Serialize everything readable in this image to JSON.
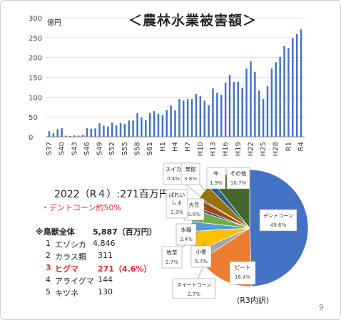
{
  "title": "＜農林水業被害額＞",
  "unit_label": "億円",
  "page_number": "9",
  "summary": {
    "headline": "2022（R４）:271百万円",
    "note": "・デントコーン約50%"
  },
  "ranking": {
    "header_label": "※鳥獣全体",
    "header_value": "5,887（百万円）",
    "items": [
      {
        "rank": "1",
        "name": "エゾシカ",
        "value": "4,846"
      },
      {
        "rank": "2",
        "name": "カラス類",
        "value": "311"
      },
      {
        "rank": "3",
        "name": "ヒグマ",
        "value": "271（4.6%）"
      },
      {
        "rank": "4",
        "name": "アライグマ",
        "value": "144"
      },
      {
        "rank": "5",
        "name": "キツネ",
        "value": "130"
      }
    ]
  },
  "pie_caption": "(R3内訳)",
  "colors": {
    "bar": "#4472c4",
    "highlight_text": "#e0282e",
    "note_text": "#e0282e"
  },
  "chart_data": [
    {
      "type": "bar",
      "title": "＜農林水業被害額＞",
      "ylabel": "億円",
      "ylim": [
        0,
        300
      ],
      "yticks": [
        "0",
        "50",
        "100",
        "150",
        "200",
        "250",
        "300"
      ],
      "xtick_labels": [
        "S37",
        "S40",
        "S43",
        "S46",
        "S49",
        "S52",
        "S55",
        "S58",
        "S61",
        "H1",
        "H4",
        "H7",
        "H10",
        "H13",
        "H16",
        "H19",
        "H22",
        "H25",
        "H28",
        "R1",
        "R4"
      ],
      "categories": [
        "S37",
        "S38",
        "S39",
        "S40",
        "S41",
        "S42",
        "S43",
        "S44",
        "S45",
        "S46",
        "S47",
        "S48",
        "S49",
        "S50",
        "S51",
        "S52",
        "S53",
        "S54",
        "S55",
        "S56",
        "S57",
        "S58",
        "S59",
        "S60",
        "S61",
        "S62",
        "S63",
        "H1",
        "H2",
        "H3",
        "H4",
        "H5",
        "H6",
        "H7",
        "H8",
        "H9",
        "H10",
        "H11",
        "H12",
        "H13",
        "H14",
        "H15",
        "H16",
        "H17",
        "H18",
        "H19",
        "H20",
        "H21",
        "H22",
        "H23",
        "H24",
        "H25",
        "H26",
        "H27",
        "H28",
        "H29",
        "H30",
        "R1",
        "R2",
        "R3",
        "R4"
      ],
      "values": [
        14,
        9,
        19,
        22,
        3,
        2,
        4,
        3,
        5,
        22,
        20,
        21,
        34,
        28,
        26,
        36,
        29,
        35,
        32,
        41,
        41,
        60,
        49,
        42,
        60,
        65,
        58,
        55,
        68,
        79,
        67,
        95,
        92,
        95,
        95,
        108,
        103,
        91,
        80,
        122,
        111,
        106,
        137,
        156,
        138,
        139,
        124,
        172,
        190,
        164,
        117,
        95,
        128,
        172,
        188,
        201,
        229,
        224,
        249,
        259,
        271
      ]
    },
    {
      "type": "pie",
      "caption": "(R3内訳)",
      "slices": [
        {
          "label": "デントコーン",
          "value": 49.6,
          "pct": "49.6%",
          "color": "#4472c4"
        },
        {
          "label": "ビート",
          "value": 16.4,
          "pct": "16.4%",
          "color": "#ed7d31"
        },
        {
          "label": "スイートコーン",
          "value": 2.7,
          "pct": "2.7%",
          "color": "#a5a5a5"
        },
        {
          "label": "小麦",
          "value": 5.7,
          "pct": "5.7%",
          "color": "#ffc000"
        },
        {
          "label": "牧草",
          "value": 2.7,
          "pct": "2.7%",
          "color": "#5b9bd5"
        },
        {
          "label": "水稲",
          "value": 3.4,
          "pct": "3.4%",
          "color": "#70ad47"
        },
        {
          "label": "大豆",
          "value": 0.8,
          "pct": "0.8%",
          "color": "#264478"
        },
        {
          "label": "ばれいしょ",
          "value": 2.3,
          "pct": "2.3%",
          "color": "#9e480e"
        },
        {
          "label": "スイカ",
          "value": 0.4,
          "pct": "0.4%",
          "color": "#636363"
        },
        {
          "label": "果樹",
          "value": 3.8,
          "pct": "3.8%",
          "color": "#997300"
        },
        {
          "label": "牛",
          "value": 1.9,
          "pct": "1.9%",
          "color": "#255e91"
        },
        {
          "label": "その他",
          "value": 10.7,
          "pct": "10.7%",
          "color": "#43682b"
        }
      ]
    }
  ]
}
